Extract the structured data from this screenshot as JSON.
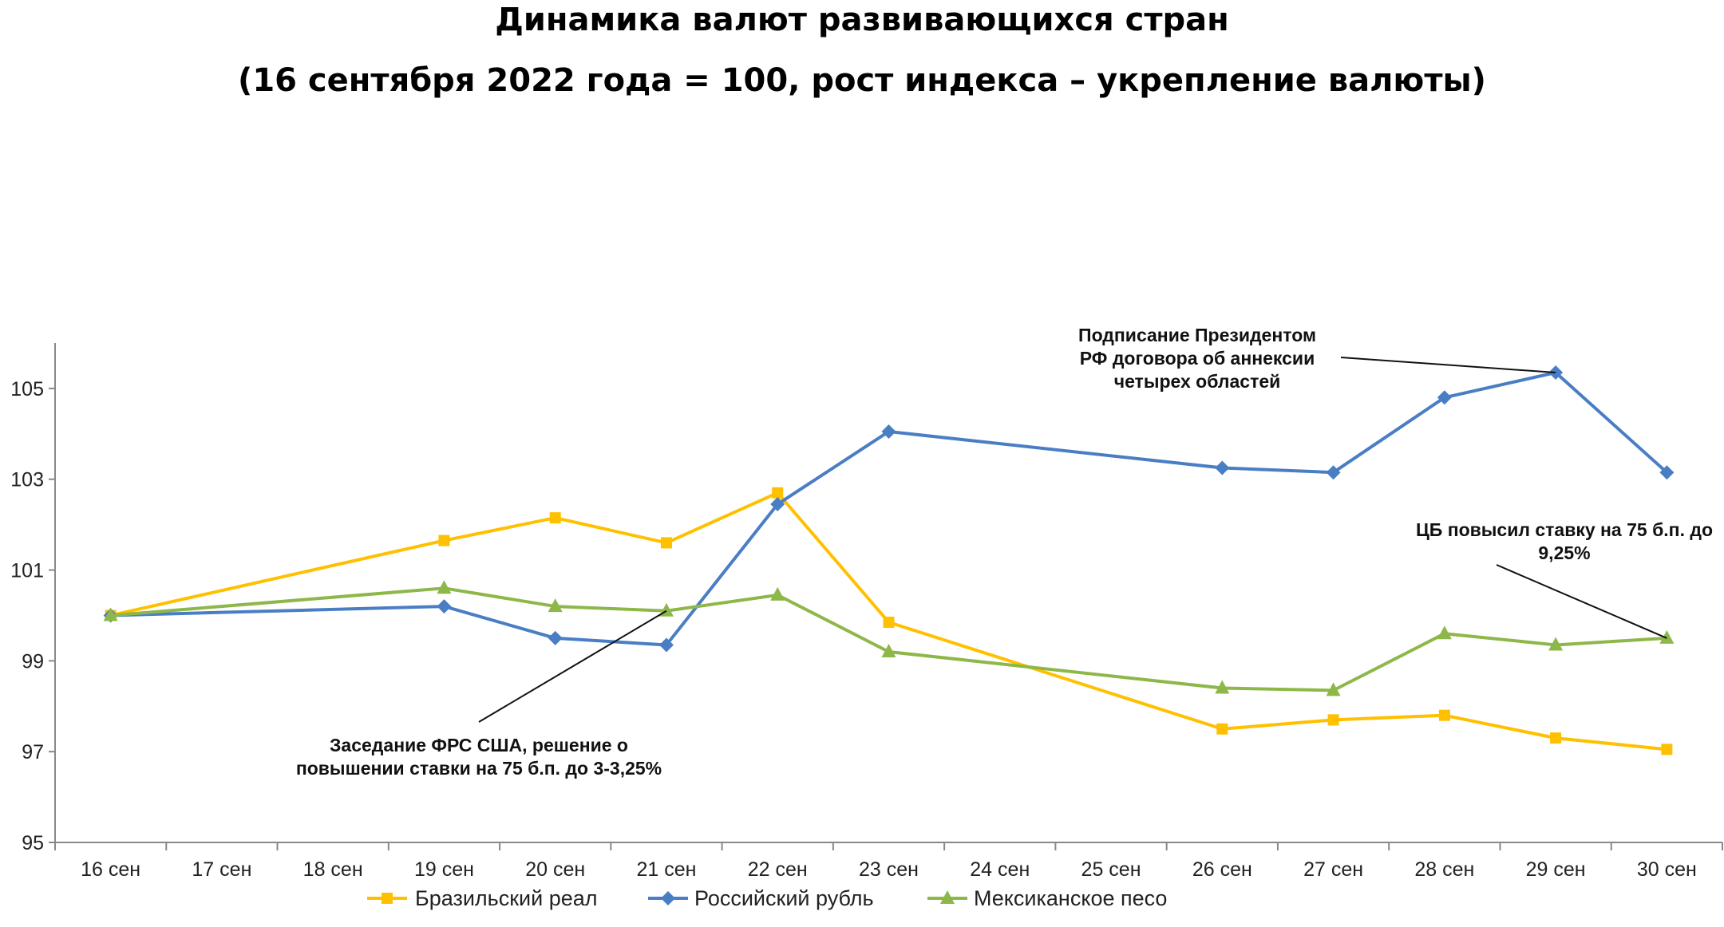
{
  "chart_data": {
    "type": "line",
    "title": "Динамика валют развивающихся стран",
    "subtitle": "(16 сентября 2022 года = 100, рост индекса – укрепление валюты)",
    "xlabel": "",
    "ylabel": "",
    "categories": [
      "16 сен",
      "17 сен",
      "18 сен",
      "19 сен",
      "20 сен",
      "21 сен",
      "22 сен",
      "23 сен",
      "24 сен",
      "25 сен",
      "26 сен",
      "27 сен",
      "28 сен",
      "29 сен",
      "30 сен"
    ],
    "ylim": [
      95,
      106
    ],
    "yticks": [
      "95",
      "97",
      "99",
      "101",
      "103",
      "105"
    ],
    "grid": false,
    "legend": "bottom",
    "series": [
      {
        "name": "Бразильский реал",
        "color": "#FFC000",
        "marker": "square",
        "points": [
          [
            0,
            100.0
          ],
          [
            3,
            101.65
          ],
          [
            4,
            102.15
          ],
          [
            5,
            101.6
          ],
          [
            6,
            102.7
          ],
          [
            7,
            99.85
          ],
          [
            10,
            97.5
          ],
          [
            11,
            97.7
          ],
          [
            12,
            97.8
          ],
          [
            13,
            97.3
          ],
          [
            14,
            97.05
          ]
        ]
      },
      {
        "name": "Российский рубль",
        "color": "#4A7EC4",
        "marker": "diamond",
        "points": [
          [
            0,
            100.0
          ],
          [
            3,
            100.2
          ],
          [
            4,
            99.5
          ],
          [
            5,
            99.35
          ],
          [
            6,
            102.45
          ],
          [
            7,
            104.05
          ],
          [
            10,
            103.25
          ],
          [
            11,
            103.15
          ],
          [
            12,
            104.8
          ],
          [
            13,
            105.35
          ],
          [
            14,
            103.15
          ]
        ]
      },
      {
        "name": "Мексиканское песо",
        "color": "#8DB849",
        "marker": "triangle",
        "points": [
          [
            0,
            100.0
          ],
          [
            3,
            100.6
          ],
          [
            4,
            100.2
          ],
          [
            5,
            100.1
          ],
          [
            6,
            100.45
          ],
          [
            7,
            99.2
          ],
          [
            10,
            98.4
          ],
          [
            11,
            98.35
          ],
          [
            12,
            99.6
          ],
          [
            13,
            99.35
          ],
          [
            14,
            99.5
          ]
        ]
      }
    ],
    "annotations": [
      {
        "lines": [
          "Подписание Президентом",
          "РФ договора об аннексии",
          "четырех областей"
        ],
        "x": 13,
        "y": 105.35
      },
      {
        "lines": [
          "ЦБ повысил ставку на 75 б.п. до",
          "9,25%"
        ],
        "x": 14,
        "y": 99.5
      },
      {
        "lines": [
          "Заседание ФРС США, решение о",
          "повышении ставки на 75 б.п. до 3-3,25%"
        ],
        "x": 5,
        "y": 100.1
      }
    ]
  }
}
